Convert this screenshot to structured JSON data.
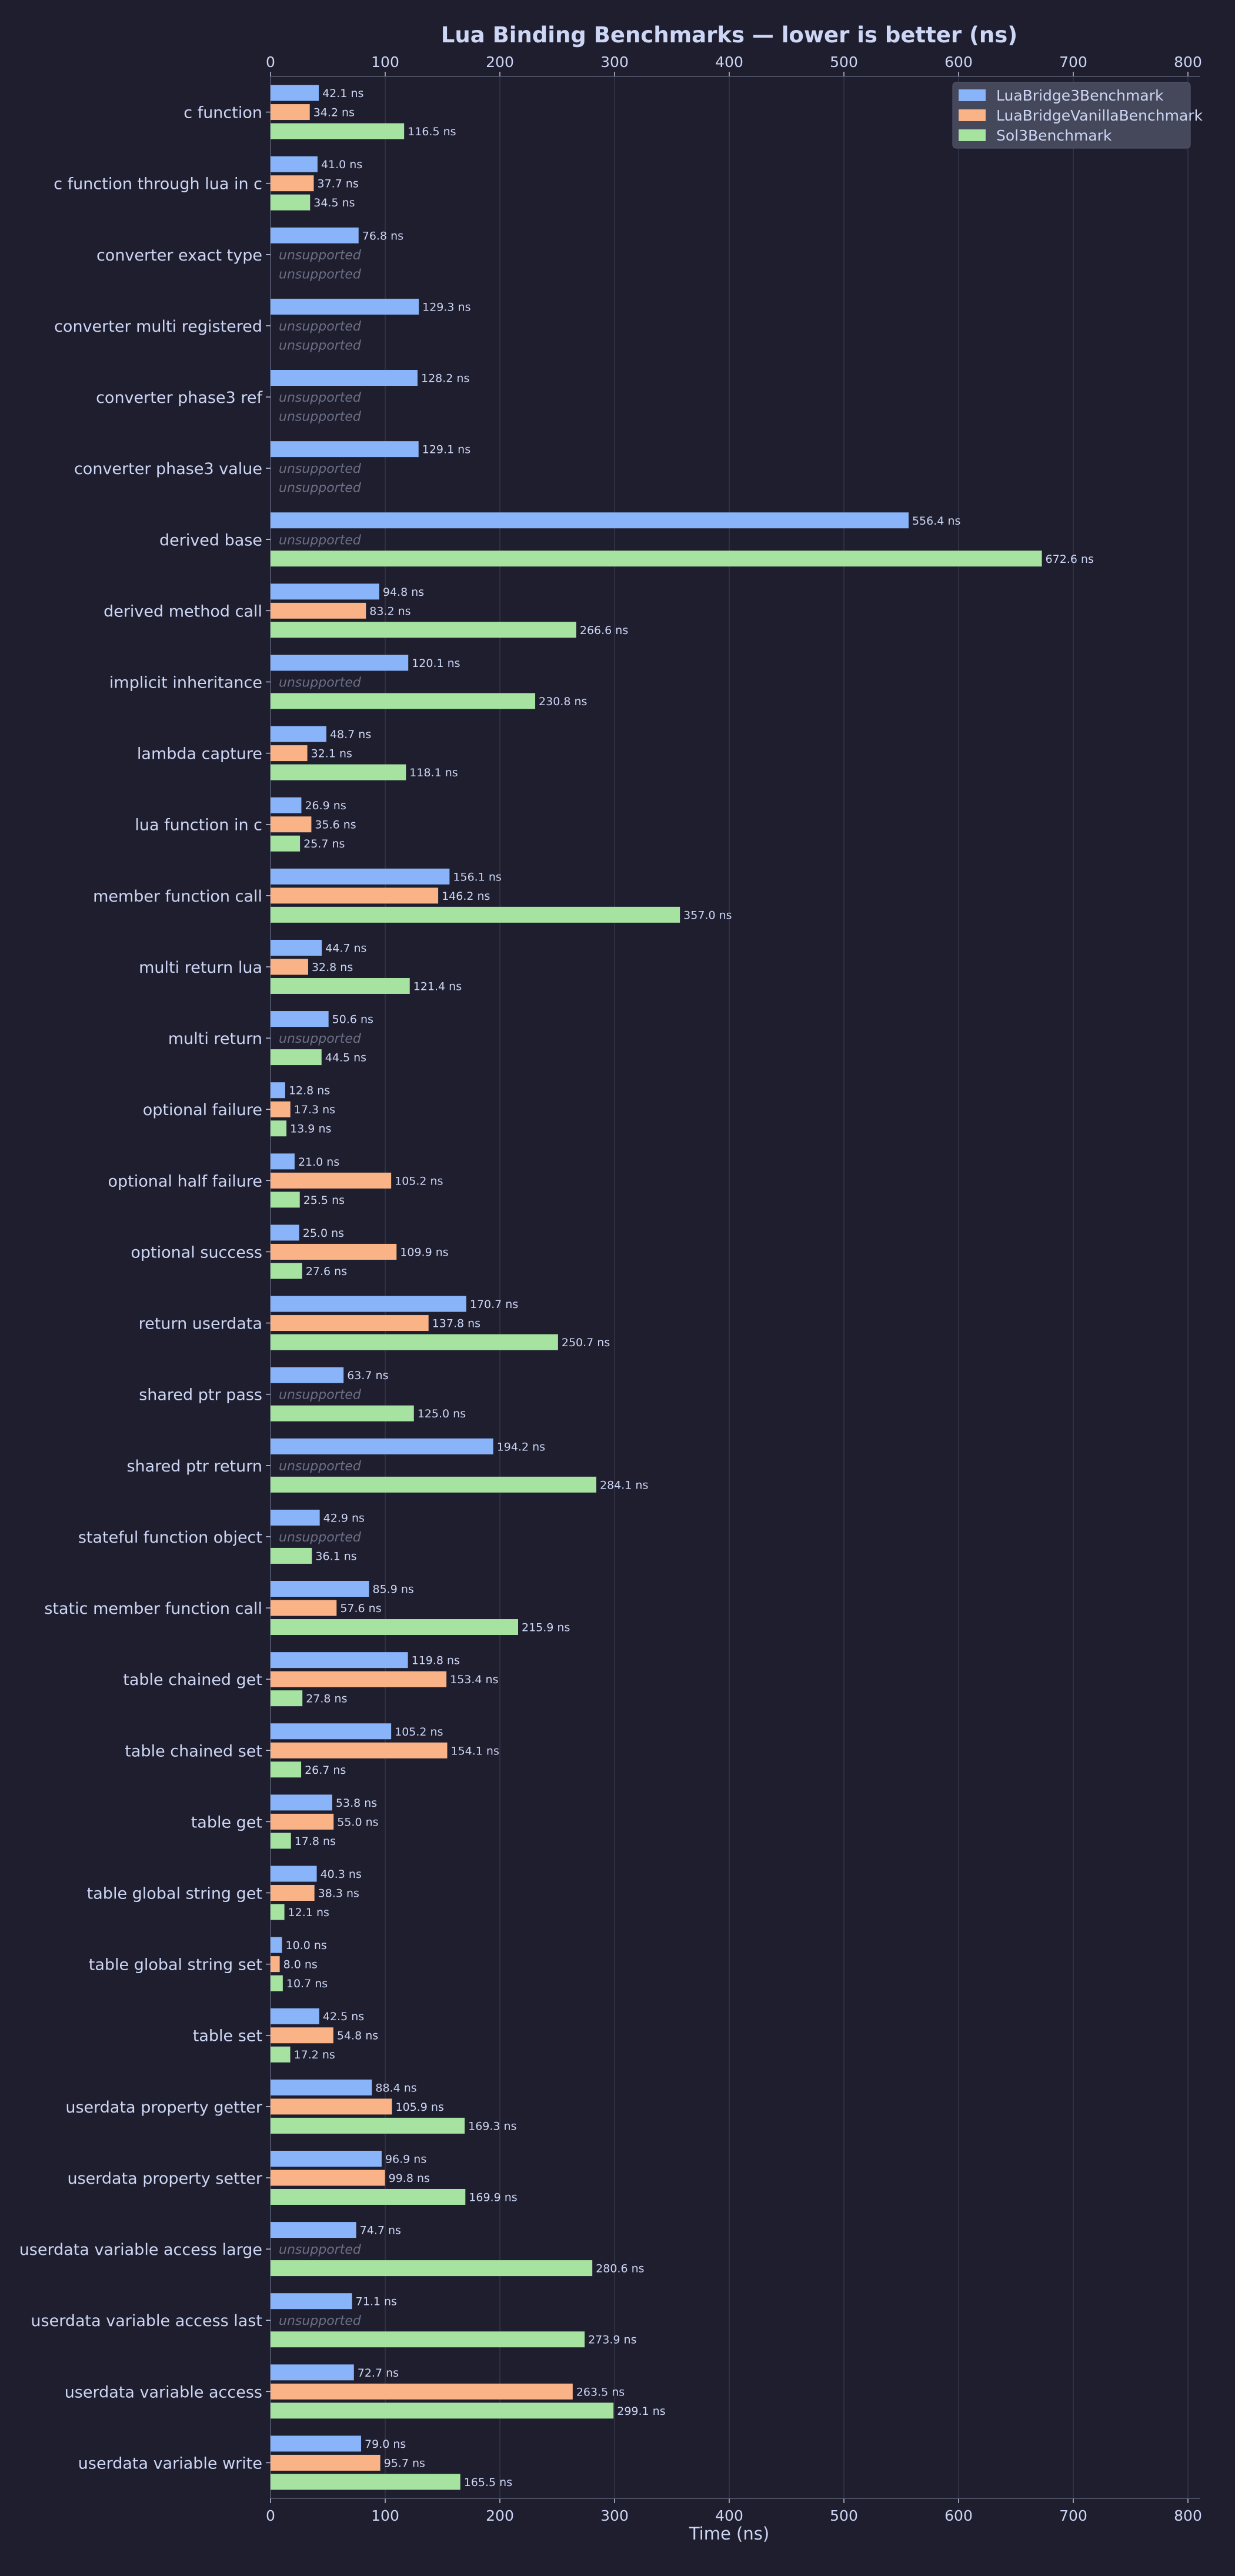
{
  "chart_data": {
    "type": "bar",
    "orientation": "horizontal",
    "title": "Lua Binding Benchmarks — lower is better (ns)",
    "xlabel": "Time (ns)",
    "ylabel": "",
    "xlim": [
      0,
      800
    ],
    "xticks": [
      0,
      100,
      200,
      300,
      400,
      500,
      600,
      700,
      800
    ],
    "tick_labels_top_and_bottom": true,
    "grid": "x",
    "legend_position": "top-right",
    "value_suffix": " ns",
    "missing_label": "unsupported",
    "categories": [
      "c function",
      "c function through lua in c",
      "converter exact type",
      "converter multi registered",
      "converter phase3 ref",
      "converter phase3 value",
      "derived base",
      "derived method call",
      "implicit inheritance",
      "lambda capture",
      "lua function in c",
      "member function call",
      "multi return lua",
      "multi return",
      "optional failure",
      "optional half failure",
      "optional success",
      "return userdata",
      "shared ptr pass",
      "shared ptr return",
      "stateful function object",
      "static member function call",
      "table chained get",
      "table chained set",
      "table get",
      "table global string get",
      "table global string set",
      "table set",
      "userdata property getter",
      "userdata property setter",
      "userdata variable access large",
      "userdata variable access last",
      "userdata variable access",
      "userdata variable write"
    ],
    "series": [
      {
        "name": "LuaBridge3Benchmark",
        "color": "#89b4fa",
        "values": [
          42.1,
          41.0,
          76.8,
          129.3,
          128.2,
          129.1,
          556.4,
          94.8,
          120.1,
          48.7,
          26.9,
          156.1,
          44.7,
          50.6,
          12.8,
          21.0,
          25.0,
          170.7,
          63.7,
          194.2,
          42.9,
          85.9,
          119.8,
          105.2,
          53.8,
          40.3,
          10.0,
          42.5,
          88.4,
          96.9,
          74.7,
          71.1,
          72.7,
          79.0
        ]
      },
      {
        "name": "LuaBridgeVanillaBenchmark",
        "color": "#fab387",
        "values": [
          34.2,
          37.7,
          null,
          null,
          null,
          null,
          null,
          83.2,
          null,
          32.1,
          35.6,
          146.2,
          32.8,
          null,
          17.3,
          105.2,
          109.9,
          137.8,
          null,
          null,
          null,
          57.6,
          153.4,
          154.1,
          55.0,
          38.3,
          8.0,
          54.8,
          105.9,
          99.8,
          null,
          null,
          263.5,
          95.7
        ]
      },
      {
        "name": "Sol3Benchmark",
        "color": "#a6e3a1",
        "values": [
          116.5,
          34.5,
          null,
          null,
          null,
          null,
          672.6,
          266.6,
          230.8,
          118.1,
          25.7,
          357.0,
          121.4,
          44.5,
          13.9,
          25.5,
          27.6,
          250.7,
          125.0,
          284.1,
          36.1,
          215.9,
          27.8,
          26.7,
          17.8,
          12.1,
          10.7,
          17.2,
          169.3,
          169.9,
          280.6,
          273.9,
          299.1,
          165.5
        ]
      }
    ]
  }
}
